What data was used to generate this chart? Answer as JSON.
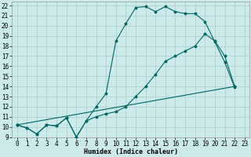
{
  "xlabel": "Humidex (Indice chaleur)",
  "xlim": [
    -0.5,
    23.5
  ],
  "ylim": [
    9,
    22.4
  ],
  "xticks": [
    0,
    1,
    2,
    3,
    4,
    5,
    6,
    7,
    8,
    9,
    10,
    11,
    12,
    13,
    14,
    15,
    16,
    17,
    18,
    19,
    20,
    21,
    22,
    23
  ],
  "yticks": [
    9,
    10,
    11,
    12,
    13,
    14,
    15,
    16,
    17,
    18,
    19,
    20,
    21,
    22
  ],
  "bg_color": "#cceaea",
  "grid_color": "#aacccc",
  "line_color": "#006666",
  "line1_x": [
    0,
    1,
    2,
    3,
    4,
    5,
    6,
    7,
    8,
    9,
    10,
    11,
    12,
    13,
    14,
    15,
    16,
    17,
    18,
    19,
    20,
    21,
    22
  ],
  "line1_y": [
    10.2,
    9.9,
    9.3,
    10.2,
    10.1,
    10.9,
    9.0,
    10.6,
    12.0,
    13.3,
    18.5,
    20.2,
    21.8,
    21.9,
    21.4,
    21.9,
    21.4,
    21.2,
    21.2,
    20.4,
    18.4,
    16.4,
    13.9
  ],
  "line2_x": [
    0,
    1,
    2,
    3,
    4,
    5,
    6,
    7,
    8,
    9,
    10,
    11,
    12,
    13,
    14,
    15,
    16,
    17,
    18,
    19,
    20,
    21,
    22
  ],
  "line2_y": [
    10.2,
    9.9,
    9.3,
    10.2,
    10.1,
    10.9,
    9.0,
    10.6,
    11.0,
    11.3,
    11.5,
    12.0,
    13.0,
    14.0,
    15.2,
    16.5,
    17.0,
    17.5,
    18.0,
    19.2,
    18.5,
    17.0,
    14.0
  ],
  "line3_x": [
    0,
    22
  ],
  "line3_y": [
    10.2,
    14.0
  ],
  "marker_size": 2.5,
  "linewidth": 0.8,
  "tick_fontsize": 5.5,
  "xlabel_fontsize": 6.0
}
